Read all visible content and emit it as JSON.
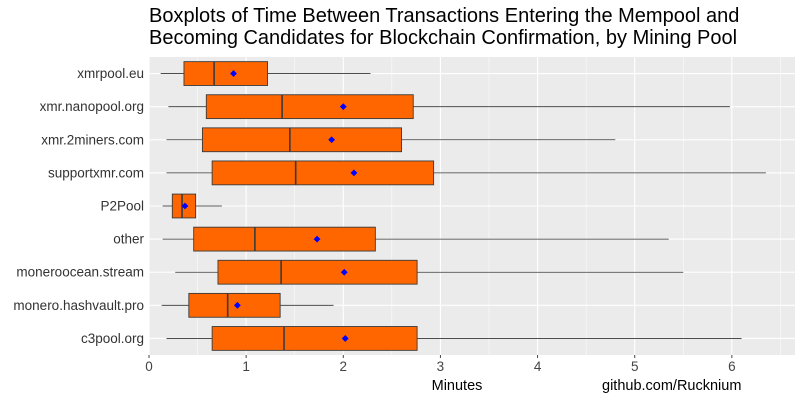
{
  "chart_data": {
    "type": "boxplot",
    "orientation": "horizontal",
    "title_lines": [
      "Boxplots of Time Between Transactions Entering the Mempool and",
      "Becoming Candidates for Blockchain Confirmation, by Mining Pool"
    ],
    "xlabel": "Minutes",
    "caption": "github.com/Rucknium",
    "xlim": [
      0,
      6.65
    ],
    "x_ticks": [
      0,
      1,
      2,
      3,
      4,
      5,
      6
    ],
    "grid": true,
    "categories": [
      "xmrpool.eu",
      "xmr.nanopool.org",
      "xmr.2miners.com",
      "supportxmr.com",
      "P2Pool",
      "other",
      "moneroocean.stream",
      "monero.hashvault.pro",
      "c3pool.org"
    ],
    "boxes": [
      {
        "whisker_low": 0.12,
        "q1": 0.36,
        "median": 0.67,
        "q3": 1.22,
        "whisker_high": 2.28,
        "mean": 0.87
      },
      {
        "whisker_low": 0.2,
        "q1": 0.59,
        "median": 1.37,
        "q3": 2.72,
        "whisker_high": 5.98,
        "mean": 2.0
      },
      {
        "whisker_low": 0.18,
        "q1": 0.55,
        "median": 1.45,
        "q3": 2.6,
        "whisker_high": 4.8,
        "mean": 1.88
      },
      {
        "whisker_low": 0.18,
        "q1": 0.65,
        "median": 1.51,
        "q3": 2.93,
        "whisker_high": 6.35,
        "mean": 2.11
      },
      {
        "whisker_low": 0.14,
        "q1": 0.24,
        "median": 0.34,
        "q3": 0.48,
        "whisker_high": 0.75,
        "mean": 0.37
      },
      {
        "whisker_low": 0.14,
        "q1": 0.46,
        "median": 1.09,
        "q3": 2.33,
        "whisker_high": 5.35,
        "mean": 1.73
      },
      {
        "whisker_low": 0.27,
        "q1": 0.71,
        "median": 1.36,
        "q3": 2.76,
        "whisker_high": 5.5,
        "mean": 2.01
      },
      {
        "whisker_low": 0.13,
        "q1": 0.41,
        "median": 0.81,
        "q3": 1.35,
        "whisker_high": 1.9,
        "mean": 0.91
      },
      {
        "whisker_low": 0.18,
        "q1": 0.65,
        "median": 1.39,
        "q3": 2.76,
        "whisker_high": 6.1,
        "mean": 2.02
      }
    ],
    "colors": {
      "box_fill": "#FF6600",
      "box_border": "#3a3a3a",
      "mean_marker": "#0000FF",
      "panel_bg": "#EBEBEB",
      "grid": "#FFFFFF"
    }
  }
}
